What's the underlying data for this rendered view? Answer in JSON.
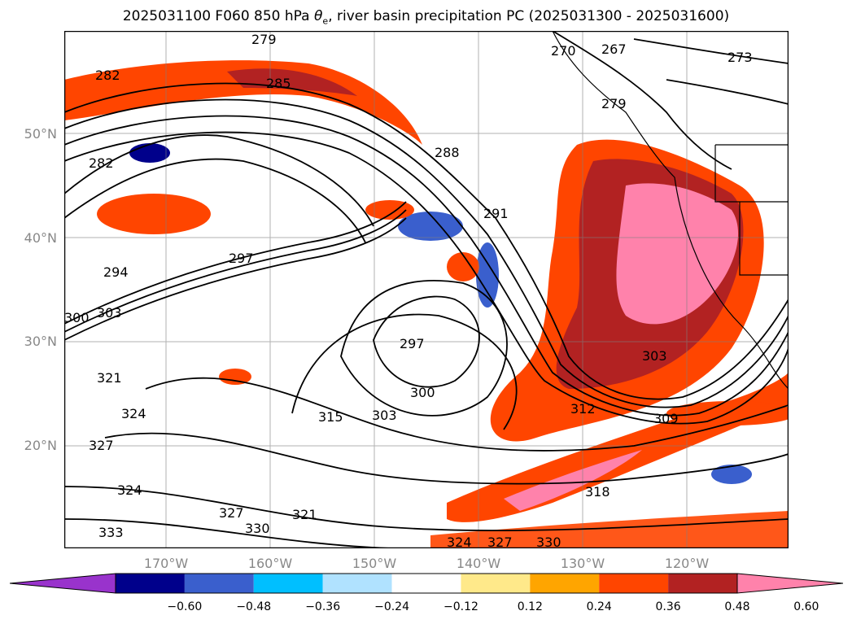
{
  "title_main": "2025031100 F060 850 hPa ",
  "title_theta": "θ",
  "title_sub": "e",
  "title_rest": ", river basin precipitation PC (2025031300 - 2025031600)",
  "lat_ticks": [
    "50°N",
    "40°N",
    "30°N",
    "20°N"
  ],
  "lon_ticks": [
    "170°W",
    "160°W",
    "150°W",
    "140°W",
    "130°W",
    "120°W"
  ],
  "colorbar": {
    "colors": [
      "#9933cc",
      "#00008b",
      "#3a5fcd",
      "#00bfff",
      "#b0e2ff",
      "#ffffff",
      "#ffe98a",
      "#ffa500",
      "#ff4500",
      "#b22222",
      "#ff82ab"
    ],
    "labels": [
      "−0.60",
      "−0.48",
      "−0.36",
      "−0.24",
      "−0.12",
      "0.12",
      "0.24",
      "0.36",
      "0.48",
      "0.60"
    ]
  },
  "contour_labels": [
    "279",
    "282",
    "285",
    "267",
    "270",
    "273",
    "279",
    "282",
    "288",
    "291",
    "294",
    "297",
    "300",
    "303",
    "297",
    "300",
    "303",
    "315",
    "321",
    "324",
    "327",
    "324",
    "327",
    "330",
    "333",
    "312",
    "309",
    "318",
    "324",
    "327",
    "330",
    "321",
    "303"
  ]
}
